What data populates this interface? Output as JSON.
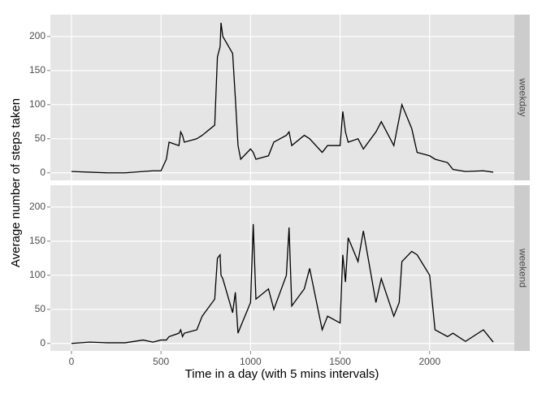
{
  "chart_data": {
    "type": "line",
    "xlabel": "Time in a day (with 5 mins intervals)",
    "ylabel": "Average number of steps taken",
    "x": [
      0,
      100,
      200,
      300,
      400,
      455,
      500,
      530,
      545,
      600,
      610,
      620,
      630,
      700,
      730,
      800,
      815,
      830,
      835,
      845,
      900,
      915,
      930,
      945,
      1000,
      1015,
      1030,
      1100,
      1130,
      1200,
      1215,
      1230,
      1300,
      1330,
      1400,
      1430,
      1500,
      1515,
      1530,
      1545,
      1600,
      1630,
      1700,
      1730,
      1800,
      1830,
      1845,
      1900,
      1930,
      2000,
      2030,
      2100,
      2130,
      2200,
      2300,
      2355
    ],
    "series": [
      {
        "name": "weekday",
        "color": "#000000",
        "values": [
          2,
          1,
          0,
          0,
          2,
          3,
          3,
          20,
          45,
          40,
          60,
          55,
          45,
          50,
          55,
          70,
          170,
          185,
          220,
          200,
          175,
          110,
          40,
          20,
          35,
          30,
          20,
          25,
          45,
          55,
          60,
          40,
          55,
          50,
          30,
          40,
          40,
          90,
          60,
          45,
          50,
          35,
          60,
          75,
          40,
          80,
          100,
          65,
          30,
          25,
          20,
          15,
          5,
          2,
          3,
          1
        ]
      },
      {
        "name": "weekend",
        "color": "#000000",
        "values": [
          0,
          2,
          1,
          1,
          5,
          2,
          5,
          5,
          10,
          15,
          20,
          10,
          15,
          20,
          40,
          65,
          125,
          130,
          100,
          95,
          45,
          75,
          15,
          25,
          60,
          175,
          65,
          80,
          50,
          100,
          170,
          55,
          80,
          110,
          20,
          40,
          30,
          130,
          90,
          155,
          120,
          165,
          60,
          95,
          40,
          60,
          120,
          135,
          130,
          100,
          20,
          10,
          15,
          3,
          20,
          2
        ]
      }
    ],
    "xlim": [
      -117.75,
      2472.75
    ],
    "xticks": [
      0,
      500,
      1000,
      1500,
      2000
    ],
    "ylim": [
      -11,
      232
    ],
    "yticks": [
      0,
      50,
      100,
      150,
      200
    ],
    "grid": true
  }
}
